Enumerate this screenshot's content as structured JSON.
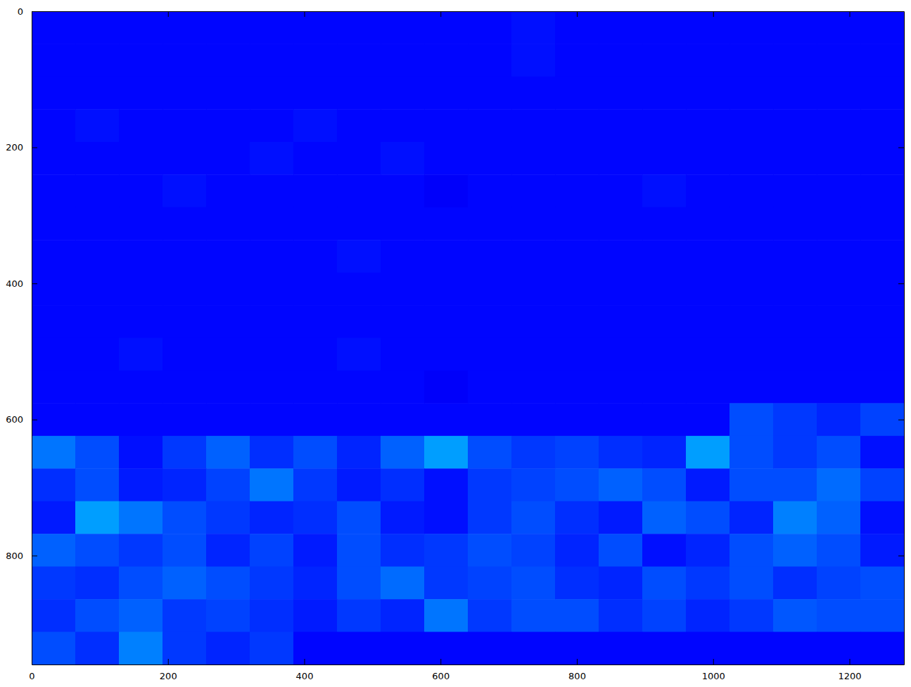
{
  "chart_data": {
    "type": "heatmap",
    "color": "jet",
    "x": [
      0,
      64,
      128,
      192,
      256,
      320,
      384,
      448,
      512,
      576,
      640,
      704,
      768,
      832,
      896,
      960,
      1024,
      1088,
      1152,
      1216,
      1280
    ],
    "y": [
      0,
      48,
      96,
      144,
      192,
      240,
      288,
      336,
      384,
      432,
      480,
      528,
      576,
      624,
      672,
      720,
      768,
      816,
      864,
      912,
      960
    ],
    "z": [
      [
        0.13,
        0.13,
        0.13,
        0.13,
        0.13,
        0.13,
        0.13,
        0.13,
        0.13,
        0.13,
        0.13,
        0.14,
        0.13,
        0.13,
        0.13,
        0.13,
        0.13,
        0.13,
        0.13,
        0.13
      ],
      [
        0.13,
        0.13,
        0.13,
        0.13,
        0.13,
        0.13,
        0.13,
        0.13,
        0.13,
        0.13,
        0.13,
        0.14,
        0.13,
        0.13,
        0.13,
        0.13,
        0.13,
        0.13,
        0.13,
        0.13
      ],
      [
        0.13,
        0.13,
        0.13,
        0.13,
        0.13,
        0.13,
        0.13,
        0.13,
        0.13,
        0.13,
        0.13,
        0.13,
        0.13,
        0.13,
        0.13,
        0.13,
        0.13,
        0.13,
        0.13,
        0.13
      ],
      [
        0.13,
        0.14,
        0.13,
        0.13,
        0.13,
        0.13,
        0.14,
        0.13,
        0.13,
        0.13,
        0.13,
        0.13,
        0.13,
        0.13,
        0.13,
        0.13,
        0.13,
        0.13,
        0.13,
        0.13
      ],
      [
        0.13,
        0.13,
        0.13,
        0.13,
        0.13,
        0.14,
        0.13,
        0.13,
        0.14,
        0.13,
        0.13,
        0.13,
        0.13,
        0.13,
        0.13,
        0.13,
        0.13,
        0.13,
        0.13,
        0.13
      ],
      [
        0.13,
        0.13,
        0.13,
        0.14,
        0.13,
        0.13,
        0.13,
        0.13,
        0.13,
        0.12,
        0.13,
        0.13,
        0.13,
        0.13,
        0.14,
        0.13,
        0.13,
        0.13,
        0.13,
        0.13
      ],
      [
        0.13,
        0.13,
        0.13,
        0.13,
        0.13,
        0.13,
        0.13,
        0.13,
        0.13,
        0.13,
        0.13,
        0.13,
        0.13,
        0.13,
        0.13,
        0.13,
        0.13,
        0.13,
        0.13,
        0.13
      ],
      [
        0.13,
        0.13,
        0.13,
        0.13,
        0.13,
        0.13,
        0.13,
        0.14,
        0.13,
        0.13,
        0.13,
        0.13,
        0.13,
        0.13,
        0.13,
        0.13,
        0.13,
        0.13,
        0.13,
        0.13
      ],
      [
        0.13,
        0.13,
        0.13,
        0.13,
        0.13,
        0.13,
        0.13,
        0.13,
        0.13,
        0.13,
        0.13,
        0.13,
        0.13,
        0.13,
        0.13,
        0.13,
        0.13,
        0.13,
        0.13,
        0.13
      ],
      [
        0.13,
        0.13,
        0.13,
        0.13,
        0.13,
        0.13,
        0.13,
        0.13,
        0.13,
        0.13,
        0.13,
        0.13,
        0.13,
        0.13,
        0.13,
        0.13,
        0.13,
        0.13,
        0.13,
        0.13
      ],
      [
        0.13,
        0.13,
        0.14,
        0.13,
        0.13,
        0.13,
        0.13,
        0.14,
        0.13,
        0.13,
        0.13,
        0.13,
        0.13,
        0.13,
        0.13,
        0.13,
        0.13,
        0.13,
        0.13,
        0.13
      ],
      [
        0.13,
        0.13,
        0.13,
        0.13,
        0.13,
        0.13,
        0.13,
        0.13,
        0.13,
        0.12,
        0.13,
        0.13,
        0.13,
        0.13,
        0.13,
        0.13,
        0.13,
        0.13,
        0.13,
        0.13
      ],
      [
        0.13,
        0.13,
        0.13,
        0.13,
        0.13,
        0.13,
        0.13,
        0.13,
        0.13,
        0.13,
        0.13,
        0.13,
        0.13,
        0.13,
        0.13,
        0.13,
        0.2,
        0.18,
        0.16,
        0.19
      ],
      [
        0.24,
        0.2,
        0.14,
        0.18,
        0.22,
        0.17,
        0.2,
        0.16,
        0.22,
        0.28,
        0.2,
        0.18,
        0.19,
        0.17,
        0.16,
        0.28,
        0.2,
        0.18,
        0.2,
        0.14
      ],
      [
        0.17,
        0.2,
        0.15,
        0.16,
        0.19,
        0.24,
        0.18,
        0.15,
        0.17,
        0.14,
        0.18,
        0.19,
        0.2,
        0.22,
        0.2,
        0.15,
        0.2,
        0.2,
        0.23,
        0.19
      ],
      [
        0.15,
        0.28,
        0.24,
        0.2,
        0.18,
        0.16,
        0.17,
        0.2,
        0.15,
        0.14,
        0.18,
        0.2,
        0.17,
        0.15,
        0.22,
        0.2,
        0.16,
        0.25,
        0.22,
        0.14
      ],
      [
        0.22,
        0.2,
        0.18,
        0.2,
        0.16,
        0.19,
        0.15,
        0.2,
        0.17,
        0.18,
        0.2,
        0.19,
        0.16,
        0.2,
        0.14,
        0.16,
        0.2,
        0.22,
        0.2,
        0.15
      ],
      [
        0.18,
        0.17,
        0.2,
        0.22,
        0.2,
        0.18,
        0.16,
        0.2,
        0.23,
        0.18,
        0.19,
        0.2,
        0.17,
        0.16,
        0.2,
        0.18,
        0.2,
        0.17,
        0.19,
        0.2
      ],
      [
        0.17,
        0.2,
        0.22,
        0.18,
        0.19,
        0.17,
        0.15,
        0.18,
        0.16,
        0.24,
        0.18,
        0.2,
        0.2,
        0.17,
        0.19,
        0.16,
        0.18,
        0.21,
        0.2,
        0.2
      ],
      [
        0.2,
        0.17,
        0.25,
        0.18,
        0.16,
        0.18,
        0.13,
        0.13,
        0.13,
        0.13,
        0.13,
        0.13,
        0.13,
        0.13,
        0.13,
        0.13,
        0.13,
        0.13,
        0.13,
        0.13
      ]
    ],
    "zlim": [
      0,
      1
    ],
    "xlim": [
      0,
      1280
    ],
    "ylim": [
      960,
      0
    ],
    "xticks": [
      0,
      200,
      400,
      600,
      800,
      1000,
      1200
    ],
    "yticks": [
      0,
      200,
      400,
      600,
      800
    ]
  }
}
